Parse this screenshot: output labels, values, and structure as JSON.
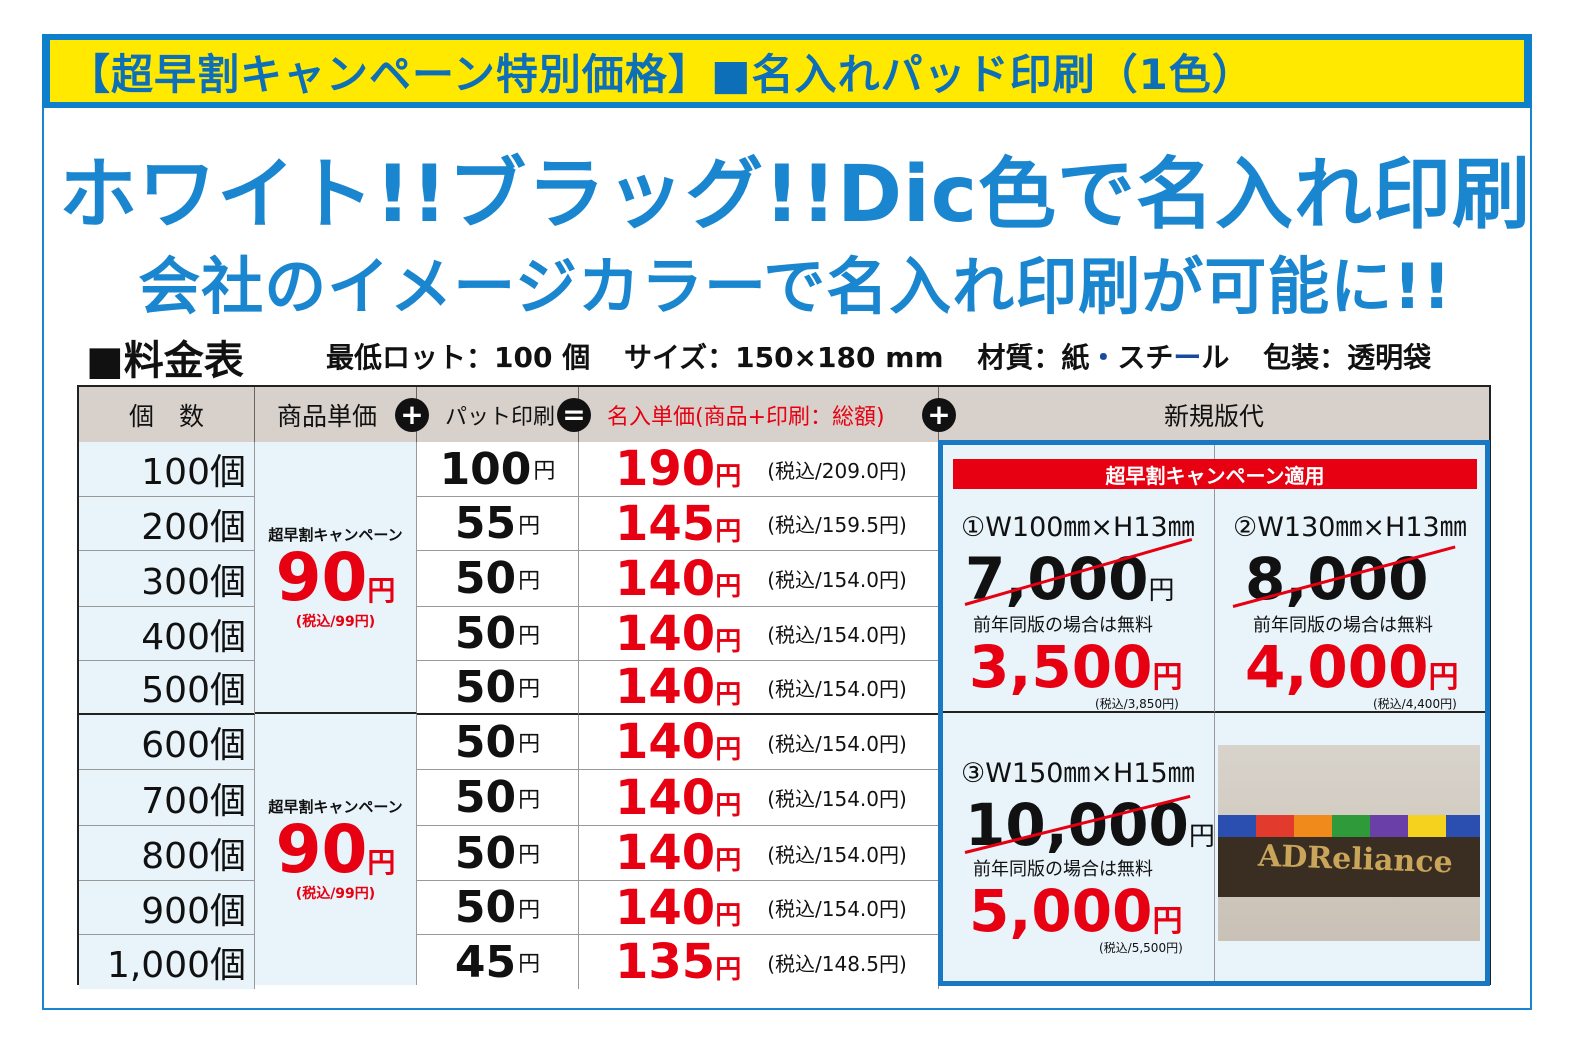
{
  "banner": {
    "title": "【超早割キャンペーン特別価格】■名入れパッド印刷（1色）"
  },
  "headline": {
    "line1": "ホワイト!!ブラッグ!!Dic色で名入れ印刷",
    "line2": "会社のイメージカラーで名入れ印刷が可能に!!"
  },
  "section": {
    "title": "■料金表"
  },
  "specs": {
    "lot": "最低ロット：100 個",
    "size": "サイズ：150×180 mm",
    "material_prefix": "材質：紙",
    "material_dot": "・",
    "material_mid": "スチ",
    "material_bar": "ー",
    "material_suffix": "ル",
    "packing": "包装：透明袋"
  },
  "table": {
    "headers": {
      "qty": "個　数",
      "unit": "商品単価",
      "pad": "パット印刷",
      "total": "名入単価(商品+印刷：総額)",
      "plate": "新規版代"
    },
    "operators": {
      "plus": "+",
      "equals": "="
    },
    "unit_blocks": [
      {
        "label": "超早割キャンペーン",
        "price": "90",
        "yen": "円",
        "tax": "(税込/99円)"
      },
      {
        "label": "超早割キャンペーン",
        "price": "90",
        "yen": "円",
        "tax": "(税込/99円)"
      }
    ],
    "rows": [
      {
        "qty": "100個",
        "pad": "100",
        "pad_yen": "円",
        "total": "190",
        "total_yen": "円",
        "tax": "(税込/209.0円)"
      },
      {
        "qty": "200個",
        "pad": "55",
        "pad_yen": "円",
        "total": "145",
        "total_yen": "円",
        "tax": "(税込/159.5円)"
      },
      {
        "qty": "300個",
        "pad": "50",
        "pad_yen": "円",
        "total": "140",
        "total_yen": "円",
        "tax": "(税込/154.0円)"
      },
      {
        "qty": "400個",
        "pad": "50",
        "pad_yen": "円",
        "total": "140",
        "total_yen": "円",
        "tax": "(税込/154.0円)"
      },
      {
        "qty": "500個",
        "pad": "50",
        "pad_yen": "円",
        "total": "140",
        "total_yen": "円",
        "tax": "(税込/154.0円)"
      },
      {
        "qty": "600個",
        "pad": "50",
        "pad_yen": "円",
        "total": "140",
        "total_yen": "円",
        "tax": "(税込/154.0円)"
      },
      {
        "qty": "700個",
        "pad": "50",
        "pad_yen": "円",
        "total": "140",
        "total_yen": "円",
        "tax": "(税込/154.0円)"
      },
      {
        "qty": "800個",
        "pad": "50",
        "pad_yen": "円",
        "total": "140",
        "total_yen": "円",
        "tax": "(税込/154.0円)"
      },
      {
        "qty": "900個",
        "pad": "50",
        "pad_yen": "円",
        "total": "140",
        "total_yen": "円",
        "tax": "(税込/154.0円)"
      },
      {
        "qty": "1,000個",
        "pad": "45",
        "pad_yen": "円",
        "total": "135",
        "total_yen": "円",
        "tax": "(税込/148.5円)"
      }
    ]
  },
  "plates": {
    "campaign_label": "超早割キャンペーン適用",
    "items": [
      {
        "size": "①W100㎜×H13㎜",
        "old": "7,000",
        "old_yen": "円",
        "note": "前年同版の場合は無料",
        "new": "3,500",
        "new_yen": "円",
        "tax": "(税込/3,850円)"
      },
      {
        "size": "②W130㎜×H13㎜",
        "old": "8,000",
        "old_yen": "",
        "note": "前年同版の場合は無料",
        "new": "4,000",
        "new_yen": "円",
        "tax": "(税込/4,400円)"
      },
      {
        "size": "③W150㎜×H15㎜",
        "old": "10,000",
        "old_yen": "円",
        "note": "前年同版の場合は無料",
        "new": "5,000",
        "new_yen": "円",
        "tax": "(税込/5,500円)"
      }
    ]
  },
  "photo": {
    "logo_text": "ADReliance",
    "strip_colors": [
      "#2a4fb0",
      "#e23b2e",
      "#f08a1a",
      "#2f9a3a",
      "#6b3fa8",
      "#f4d21e",
      "#2a4fb0"
    ]
  }
}
